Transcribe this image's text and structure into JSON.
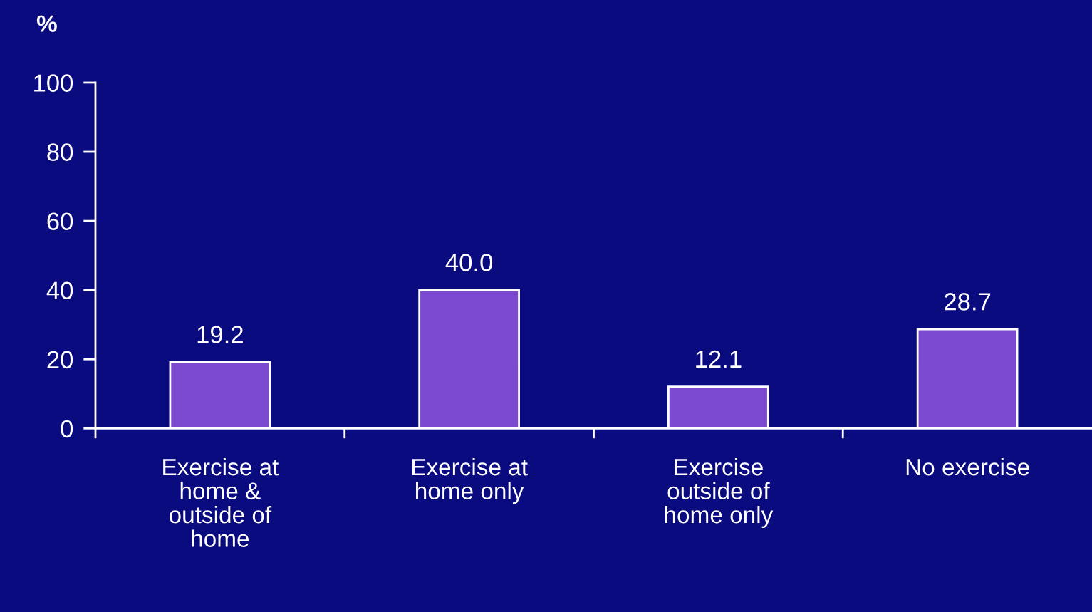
{
  "chart_data": {
    "type": "bar",
    "ylabel": "%",
    "categories": [
      "Exercise at\nhome &\noutside of\nhome",
      "Exercise at\nhome only",
      "Exercise\noutside of\nhome only",
      "No exercise"
    ],
    "values": [
      19.2,
      40.0,
      12.1,
      28.7
    ],
    "value_labels": [
      "19.2",
      "40.0",
      "12.1",
      "28.7"
    ],
    "color": "#7b4acf",
    "ylim": [
      0,
      100
    ],
    "yticks": [
      0,
      20,
      40,
      60,
      80,
      100
    ],
    "grid": false,
    "legend": false
  }
}
